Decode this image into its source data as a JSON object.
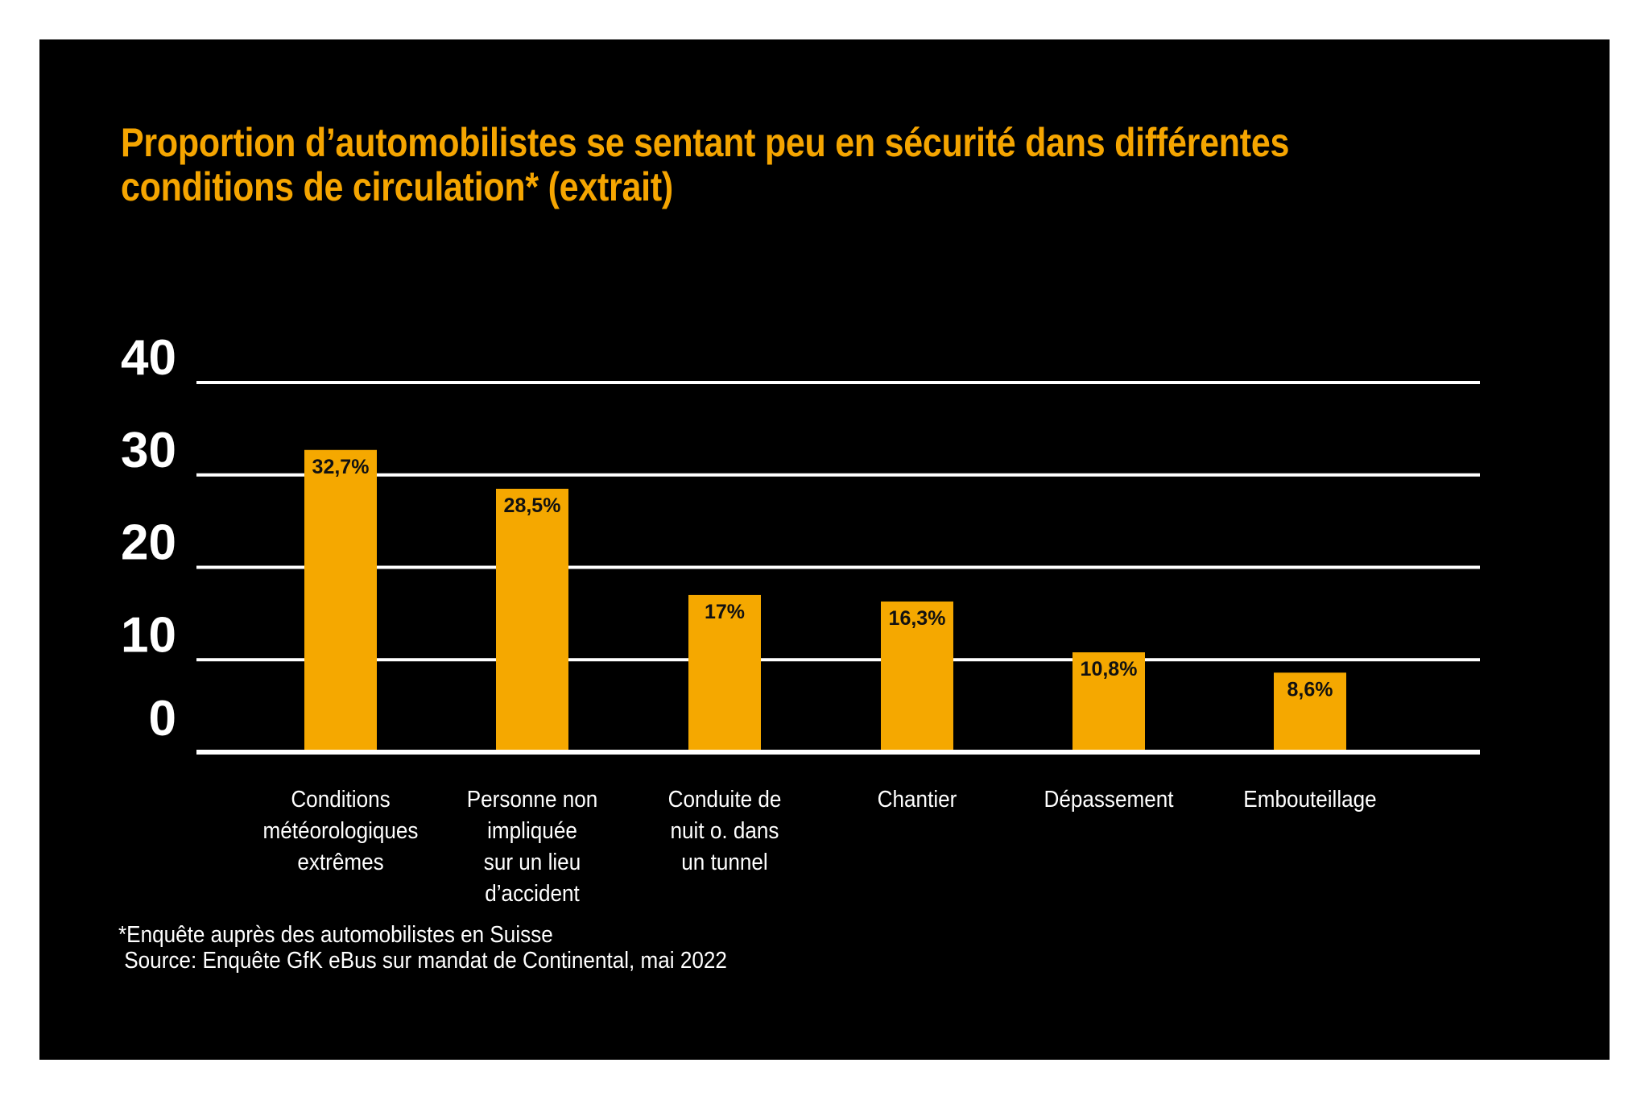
{
  "chart_data": {
    "type": "bar",
    "title": "Proportion d’automobilistes se sentant peu en sécurité dans différentes conditions de circulation* (extrait)",
    "title_lines": [
      "Proportion d’automobilistes se sentant peu en sécurité dans différentes",
      "conditions de circulation* (extrait)"
    ],
    "categories": [
      "Conditions météorologiques extrêmes",
      "Personne non impliquée sur un lieu d’accident",
      "Conduite de nuit o. dans un tunnel",
      "Chantier",
      "Dépassement",
      "Embouteillage"
    ],
    "category_lines": [
      [
        "Conditions",
        "météorologiques",
        "extrêmes"
      ],
      [
        "Personne non",
        "impliquée",
        "sur un lieu",
        "d’accident"
      ],
      [
        "Conduite de",
        "nuit o. dans",
        "un tunnel"
      ],
      [
        "Chantier"
      ],
      [
        "Dépassement"
      ],
      [
        "Embouteillage"
      ]
    ],
    "values": [
      32.7,
      28.5,
      17,
      16.3,
      10.8,
      8.6
    ],
    "value_labels": [
      "32,7%",
      "28,5%",
      "17%",
      "16,3%",
      "10,8%",
      "8,6%"
    ],
    "unit": "%",
    "xlabel": "",
    "ylabel": "",
    "ylim": [
      0,
      40
    ],
    "yticks": [
      0,
      10,
      20,
      30,
      40
    ],
    "ytick_labels": [
      "0",
      "10",
      "20",
      "30",
      "40"
    ],
    "grid": true,
    "legend": null,
    "colors": {
      "bar": "#F5A800",
      "title": "#F5A500",
      "background": "#000000",
      "text": "#FFFFFF",
      "value_label": "#111111"
    }
  },
  "footnotes": [
    "*Enquête auprès des automobilistes en Suisse",
    " Source: Enquête GfK eBus sur mandat de Continental, mai 2022"
  ]
}
